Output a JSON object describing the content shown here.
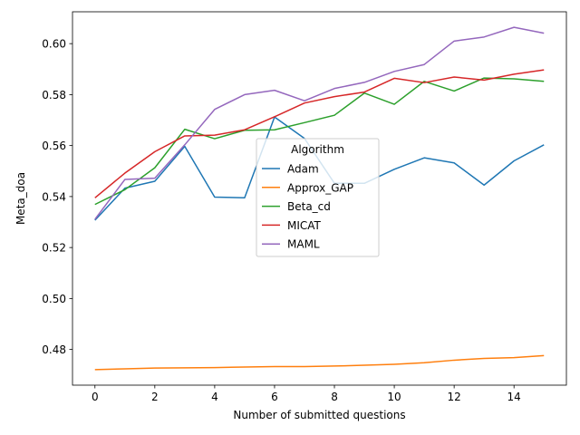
{
  "chart_data": {
    "type": "line",
    "title": "",
    "xlabel": "Number of submitted questions",
    "ylabel": "Meta_doa",
    "xlim": [
      -0.75,
      15.75
    ],
    "ylim": [
      0.466,
      0.6125
    ],
    "xticks": [
      0,
      2,
      4,
      6,
      8,
      10,
      12,
      14
    ],
    "yticks": [
      0.48,
      0.5,
      0.52,
      0.54,
      0.56,
      0.58,
      0.6
    ],
    "ytick_labels": [
      "0.48",
      "0.50",
      "0.52",
      "0.54",
      "0.56",
      "0.58",
      "0.60"
    ],
    "grid": false,
    "legend": {
      "title": "Algorithm",
      "placement": "center"
    },
    "x": [
      0,
      1,
      2,
      3,
      4,
      5,
      6,
      7,
      8,
      9,
      10,
      11,
      12,
      13,
      14,
      15
    ],
    "series": [
      {
        "name": "Adam",
        "color": "#1f77b4",
        "values": [
          0.5307,
          0.5433,
          0.546,
          0.5597,
          0.5398,
          0.5395,
          0.5712,
          0.5628,
          0.5452,
          0.5452,
          0.5507,
          0.5552,
          0.5532,
          0.5445,
          0.554,
          0.5603
        ]
      },
      {
        "name": "Approx_GAP",
        "color": "#ff7f0e",
        "values": [
          0.4721,
          0.4724,
          0.4727,
          0.4728,
          0.4729,
          0.4731,
          0.4733,
          0.4733,
          0.4735,
          0.4738,
          0.4742,
          0.4748,
          0.4758,
          0.4765,
          0.4768,
          0.4776
        ]
      },
      {
        "name": "Beta_cd",
        "color": "#2ca02c",
        "values": [
          0.5369,
          0.5427,
          0.5513,
          0.5664,
          0.5627,
          0.566,
          0.5662,
          0.569,
          0.5719,
          0.5806,
          0.5762,
          0.5852,
          0.5814,
          0.5865,
          0.5862,
          0.5852
        ]
      },
      {
        "name": "MICAT",
        "color": "#d62728",
        "values": [
          0.5395,
          0.5492,
          0.5576,
          0.5638,
          0.5641,
          0.5662,
          0.5713,
          0.5767,
          0.5792,
          0.581,
          0.5864,
          0.5847,
          0.5869,
          0.5857,
          0.588,
          0.5897
        ]
      },
      {
        "name": "MAML",
        "color": "#9467bd",
        "values": [
          0.5311,
          0.5467,
          0.5472,
          0.5603,
          0.5742,
          0.58,
          0.5817,
          0.5776,
          0.5824,
          0.5848,
          0.5891,
          0.5918,
          0.601,
          0.6026,
          0.6064,
          0.6041
        ]
      }
    ]
  }
}
